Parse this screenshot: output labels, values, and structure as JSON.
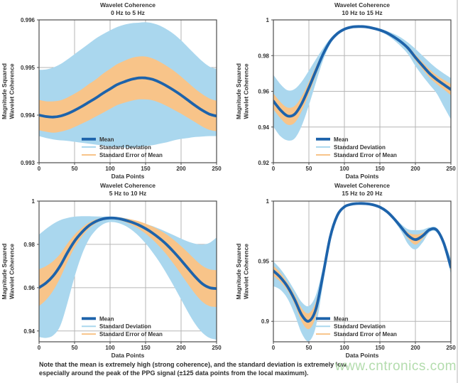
{
  "note": {
    "line1": "Note that the mean is extremely high (strong coherence), and the standard deviation is extremely low,",
    "line2": "especially around the peak of the PPG signal (±125 data points from the local maximum)."
  },
  "watermark": {
    "text": "www.cntronics.com",
    "color": "#a6d79f"
  },
  "colors": {
    "mean": "#1d63ab",
    "std_dev": "#aad7ee",
    "sem": "#f8c489",
    "grid": "#b6b6b6",
    "frame": "#4d4d4d",
    "text": "#333333",
    "background": "#ffffff"
  },
  "chart_data": [
    {
      "type": "line",
      "title": "Wavelet Coherence",
      "subtitle": "0 Hz to 5 Hz",
      "xlabel": "Data Points",
      "ylabel": [
        "Magnitude Squared",
        "Wavelet Coherence"
      ],
      "legend": [
        "Mean",
        "Standard Deviation",
        "Standard Error of Mean"
      ],
      "xlim": [
        0,
        250
      ],
      "ylim": [
        0.993,
        0.996
      ],
      "xticks": [
        0,
        50,
        100,
        150,
        200,
        250
      ],
      "yticks": [
        0.993,
        0.994,
        0.995,
        0.996
      ],
      "ytick_labels": [
        "0.993",
        "0.994",
        "0.995",
        "0.996"
      ],
      "x": [
        0,
        10,
        20,
        30,
        40,
        50,
        60,
        70,
        80,
        90,
        100,
        110,
        120,
        130,
        140,
        150,
        160,
        170,
        180,
        190,
        200,
        210,
        220,
        230,
        240,
        250
      ],
      "series": {
        "mean": [
          0.994,
          0.99397,
          0.99396,
          0.99398,
          0.99403,
          0.9941,
          0.99418,
          0.99427,
          0.99436,
          0.99446,
          0.99455,
          0.99464,
          0.9947,
          0.99475,
          0.99478,
          0.99478,
          0.99475,
          0.99469,
          0.99461,
          0.99452,
          0.99442,
          0.99431,
          0.9942,
          0.9941,
          0.99402,
          0.99398
        ],
        "std_dev_upper": [
          0.99495,
          0.99496,
          0.995,
          0.99507,
          0.99517,
          0.99528,
          0.99539,
          0.9955,
          0.99561,
          0.9957,
          0.99578,
          0.99585,
          0.9959,
          0.99593,
          0.99594,
          0.99595,
          0.99593,
          0.99588,
          0.9958,
          0.9957,
          0.99557,
          0.99542,
          0.99527,
          0.99513,
          0.99502,
          0.99497
        ],
        "std_dev_lower": [
          0.99356,
          0.99352,
          0.99349,
          0.99347,
          0.99346,
          0.99344,
          0.99342,
          0.9934,
          0.99338,
          0.99336,
          0.99334,
          0.99333,
          0.99332,
          0.99332,
          0.99333,
          0.99335,
          0.99337,
          0.9934,
          0.99343,
          0.99347,
          0.9935,
          0.99352,
          0.99354,
          0.99355,
          0.99356,
          0.99356
        ],
        "sem_upper": [
          0.99432,
          0.99429,
          0.99429,
          0.99431,
          0.99437,
          0.99445,
          0.99454,
          0.99465,
          0.99475,
          0.99487,
          0.99497,
          0.99507,
          0.99514,
          0.9952,
          0.99523,
          0.99523,
          0.99519,
          0.99512,
          0.99503,
          0.99493,
          0.99481,
          0.99468,
          0.99455,
          0.99444,
          0.99435,
          0.9943
        ],
        "sem_lower": [
          0.99368,
          0.99365,
          0.99363,
          0.99365,
          0.99369,
          0.99375,
          0.99382,
          0.99389,
          0.99397,
          0.99405,
          0.99413,
          0.99421,
          0.99426,
          0.9943,
          0.99433,
          0.99433,
          0.99431,
          0.99426,
          0.99419,
          0.99411,
          0.99403,
          0.99394,
          0.99385,
          0.99376,
          0.99369,
          0.99366
        ]
      }
    },
    {
      "type": "line",
      "title": "Wavelet Coherence",
      "subtitle": "10 Hz to 15 Hz",
      "xlabel": "Data Points",
      "ylabel": [
        "Magnitude Squared",
        "Wavelet Coherence"
      ],
      "legend": [
        "Mean",
        "Standard Deviation",
        "Standard Error of Mean"
      ],
      "xlim": [
        0,
        250
      ],
      "ylim": [
        0.92,
        1.0
      ],
      "xticks": [
        0,
        50,
        100,
        150,
        200,
        250
      ],
      "yticks": [
        0.92,
        0.94,
        0.96,
        0.98,
        1.0
      ],
      "ytick_labels": [
        "0.92",
        "0.94",
        "0.96",
        "0.98",
        "1"
      ],
      "x": [
        0,
        10,
        20,
        30,
        40,
        50,
        60,
        70,
        80,
        90,
        100,
        110,
        120,
        130,
        140,
        150,
        160,
        170,
        180,
        190,
        200,
        210,
        220,
        230,
        240,
        250
      ],
      "series": {
        "mean": [
          0.9545,
          0.9495,
          0.9462,
          0.9472,
          0.9532,
          0.962,
          0.9716,
          0.9808,
          0.988,
          0.9923,
          0.9948,
          0.996,
          0.9963,
          0.9961,
          0.9954,
          0.9943,
          0.9927,
          0.9904,
          0.9876,
          0.984,
          0.979,
          0.9744,
          0.97,
          0.9666,
          0.9638,
          0.961
        ],
        "std_dev_upper": [
          0.9692,
          0.964,
          0.9606,
          0.9613,
          0.9655,
          0.9716,
          0.978,
          0.9841,
          0.9895,
          0.9933,
          0.9954,
          0.9965,
          0.9968,
          0.9966,
          0.996,
          0.9951,
          0.9938,
          0.9921,
          0.99,
          0.9872,
          0.9838,
          0.98,
          0.9762,
          0.9728,
          0.97,
          0.9674
        ],
        "std_dev_lower": [
          0.9402,
          0.9348,
          0.9325,
          0.9336,
          0.9408,
          0.9522,
          0.965,
          0.9774,
          0.9864,
          0.9913,
          0.9941,
          0.9955,
          0.9958,
          0.9956,
          0.9948,
          0.9935,
          0.9915,
          0.9886,
          0.985,
          0.9806,
          0.9742,
          0.9687,
          0.9637,
          0.9588,
          0.9515,
          0.9443
        ],
        "sem_upper": [
          0.9588,
          0.954,
          0.9509,
          0.9518,
          0.9572,
          0.9653,
          0.974,
          0.9821,
          0.9887,
          0.9927,
          0.9951,
          0.9962,
          0.9965,
          0.9963,
          0.9956,
          0.9946,
          0.9931,
          0.991,
          0.9884,
          0.9851,
          0.9806,
          0.9763,
          0.9723,
          0.969,
          0.9664,
          0.9641
        ],
        "sem_lower": [
          0.95,
          0.9449,
          0.9413,
          0.9424,
          0.949,
          0.9586,
          0.9692,
          0.9795,
          0.9872,
          0.9919,
          0.9945,
          0.9958,
          0.9961,
          0.9959,
          0.9952,
          0.994,
          0.9923,
          0.9898,
          0.9867,
          0.9828,
          0.9774,
          0.9724,
          0.9677,
          0.9641,
          0.9611,
          0.9578
        ]
      }
    },
    {
      "type": "line",
      "title": "Wavelet Coherence",
      "subtitle": "5 Hz to 10 Hz",
      "xlabel": "Data Points",
      "ylabel": [
        "Magnitude Squared",
        "Wavelet Coherence"
      ],
      "legend": [
        "Mean",
        "Standard Deviation",
        "Standard Error of Mean"
      ],
      "xlim": [
        0,
        250
      ],
      "ylim": [
        0.935,
        1.0
      ],
      "xticks": [
        0,
        50,
        100,
        150,
        200,
        250
      ],
      "yticks": [
        0.94,
        0.96,
        0.98,
        1.0
      ],
      "ytick_labels": [
        "0.94",
        "0.96",
        "0.98",
        "1"
      ],
      "x": [
        0,
        10,
        20,
        30,
        40,
        50,
        60,
        70,
        80,
        90,
        100,
        110,
        120,
        130,
        140,
        150,
        160,
        170,
        180,
        190,
        200,
        210,
        220,
        230,
        240,
        250
      ],
      "series": {
        "mean": [
          0.96,
          0.9622,
          0.9655,
          0.9702,
          0.9762,
          0.9815,
          0.9855,
          0.9886,
          0.9906,
          0.9918,
          0.9922,
          0.992,
          0.9913,
          0.9903,
          0.989,
          0.9873,
          0.9852,
          0.9827,
          0.9798,
          0.9764,
          0.9727,
          0.9688,
          0.965,
          0.9618,
          0.96,
          0.9596
        ],
        "std_dev_upper": [
          0.9845,
          0.9872,
          0.9895,
          0.9912,
          0.9922,
          0.9928,
          0.993,
          0.993,
          0.9929,
          0.9928,
          0.9929,
          0.9927,
          0.9922,
          0.9915,
          0.9905,
          0.9895,
          0.9884,
          0.9871,
          0.9857,
          0.9842,
          0.9827,
          0.9813,
          0.9803,
          0.9799,
          0.9807,
          0.9832
        ],
        "std_dev_lower": [
          0.9372,
          0.9368,
          0.938,
          0.9425,
          0.953,
          0.965,
          0.975,
          0.9822,
          0.9866,
          0.9893,
          0.9903,
          0.99,
          0.9888,
          0.9868,
          0.984,
          0.9805,
          0.9763,
          0.9716,
          0.9663,
          0.9606,
          0.9546,
          0.9486,
          0.9432,
          0.9392,
          0.9368,
          0.936
        ],
        "sem_upper": [
          0.9685,
          0.97,
          0.9723,
          0.9757,
          0.9804,
          0.9845,
          0.9876,
          0.99,
          0.9915,
          0.9924,
          0.9927,
          0.9926,
          0.9921,
          0.9915,
          0.9907,
          0.9896,
          0.9882,
          0.9865,
          0.9845,
          0.982,
          0.9792,
          0.9761,
          0.9729,
          0.9701,
          0.9685,
          0.9681
        ],
        "sem_lower": [
          0.9515,
          0.9544,
          0.9587,
          0.9647,
          0.972,
          0.9785,
          0.9834,
          0.9872,
          0.9897,
          0.9912,
          0.9917,
          0.9914,
          0.9905,
          0.9891,
          0.9873,
          0.985,
          0.9822,
          0.9789,
          0.9751,
          0.9708,
          0.9662,
          0.9615,
          0.9571,
          0.9535,
          0.9515,
          0.9511
        ]
      }
    },
    {
      "type": "line",
      "title": "Wavelet Coherence",
      "subtitle": "15 Hz to 20 Hz",
      "xlabel": "Data Points",
      "ylabel": [
        "Magnitude Squared",
        "Wavelet Coherence"
      ],
      "legend": [
        "Mean",
        "Standard Deviation",
        "Standard Error of Mean"
      ],
      "xlim": [
        0,
        250
      ],
      "ylim": [
        0.883,
        1.0
      ],
      "xticks": [
        0,
        50,
        100,
        150,
        200,
        250
      ],
      "yticks": [
        0.9,
        0.95,
        1.0
      ],
      "ytick_labels": [
        "0.9",
        "0.95",
        "1"
      ],
      "x": [
        0,
        10,
        20,
        30,
        40,
        50,
        60,
        70,
        80,
        90,
        100,
        110,
        120,
        130,
        140,
        150,
        160,
        170,
        180,
        190,
        200,
        210,
        220,
        230,
        240,
        250
      ],
      "series": {
        "mean": [
          0.942,
          0.9365,
          0.9288,
          0.918,
          0.9052,
          0.9002,
          0.9105,
          0.939,
          0.97,
          0.988,
          0.9952,
          0.9974,
          0.998,
          0.9979,
          0.997,
          0.995,
          0.9912,
          0.9853,
          0.9782,
          0.9712,
          0.968,
          0.971,
          0.9762,
          0.976,
          0.965,
          0.945
        ],
        "std_dev_upper": [
          0.9498,
          0.9435,
          0.9352,
          0.9255,
          0.916,
          0.9128,
          0.922,
          0.9452,
          0.973,
          0.9895,
          0.996,
          0.998,
          0.9986,
          0.9985,
          0.9976,
          0.9957,
          0.9922,
          0.9868,
          0.9808,
          0.9765,
          0.9758,
          0.9762,
          0.9782,
          0.9777,
          0.967,
          0.952
        ],
        "std_dev_lower": [
          0.9292,
          0.9262,
          0.9188,
          0.9058,
          0.89,
          0.8835,
          0.896,
          0.9315,
          0.9665,
          0.9862,
          0.9942,
          0.9967,
          0.9974,
          0.9973,
          0.9962,
          0.9941,
          0.99,
          0.9835,
          0.9748,
          0.964,
          0.9598,
          0.9655,
          0.9742,
          0.974,
          0.9625,
          0.9392
        ],
        "sem_upper": [
          0.9462,
          0.9402,
          0.932,
          0.9218,
          0.9108,
          0.9068,
          0.9165,
          0.9422,
          0.9715,
          0.9888,
          0.9956,
          0.9977,
          0.9983,
          0.9982,
          0.9973,
          0.9953,
          0.9917,
          0.986,
          0.9795,
          0.9738,
          0.9722,
          0.9735,
          0.9772,
          0.9769,
          0.966,
          0.9488
        ],
        "sem_lower": [
          0.9378,
          0.9328,
          0.9256,
          0.9142,
          0.8996,
          0.8936,
          0.9045,
          0.9358,
          0.9685,
          0.9872,
          0.9948,
          0.9971,
          0.9977,
          0.9976,
          0.9967,
          0.9947,
          0.9907,
          0.9846,
          0.9769,
          0.9686,
          0.9638,
          0.9685,
          0.9752,
          0.9751,
          0.964,
          0.9412
        ]
      }
    }
  ]
}
